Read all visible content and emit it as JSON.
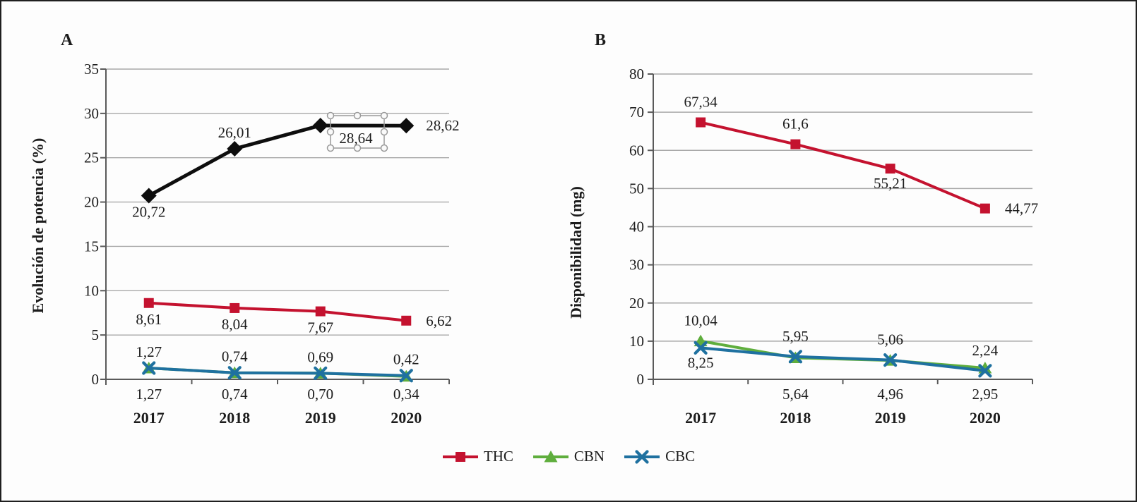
{
  "chart_data": [
    {
      "type": "line",
      "panel_label": "A",
      "ylabel": "Evolución de potencia (%)",
      "ylim": [
        0,
        35
      ],
      "ytick_step": 5,
      "ytick_labels": [
        "0",
        "5",
        "10",
        "15",
        "20",
        "25",
        "30",
        "35"
      ],
      "categories": [
        "2017",
        "2018",
        "2019",
        "2020"
      ],
      "grid": true,
      "legend_position": "bottom",
      "series": [
        {
          "name": "",
          "marker": "diamond",
          "color": "#0e0e0e",
          "in_legend": false,
          "values": [
            20.72,
            26.01,
            28.64,
            28.62
          ],
          "labels": [
            "20,72",
            "26,01",
            "28,64",
            "28,62"
          ],
          "label_pos": [
            "below",
            "above",
            "boxed",
            "right"
          ]
        },
        {
          "name": "THC",
          "marker": "square",
          "color": "#c4122f",
          "in_legend": true,
          "values": [
            8.61,
            8.04,
            7.67,
            6.62
          ],
          "labels": [
            "8,61",
            "8,04",
            "7,67",
            "6,62"
          ],
          "label_pos": [
            "below",
            "below",
            "below",
            "right"
          ]
        },
        {
          "name": "CBN",
          "marker": "triangle",
          "color": "#5fae3d",
          "in_legend": true,
          "values": [
            1.27,
            0.74,
            0.7,
            0.34
          ],
          "labels": [
            "1,27",
            "0,74",
            "0,70",
            "0,34"
          ],
          "label_pos": [
            "axis-below",
            "axis-below",
            "axis-below",
            "axis-below"
          ]
        },
        {
          "name": "CBC",
          "marker": "x",
          "color": "#1f71a0",
          "in_legend": true,
          "values": [
            1.27,
            0.74,
            0.69,
            0.42
          ],
          "labels": [
            "1,27",
            "0,74",
            "0,69",
            "0,42"
          ],
          "label_pos": [
            "above",
            "above",
            "above",
            "above"
          ]
        }
      ],
      "annotation": {
        "type": "selection-box",
        "on_series": 0,
        "on_point": 2,
        "label": "28,64"
      }
    },
    {
      "type": "line",
      "panel_label": "B",
      "ylabel": "Disponibilidad (mg)",
      "ylim": [
        0,
        80
      ],
      "ytick_step": 10,
      "ytick_labels": [
        "0",
        "10",
        "20",
        "30",
        "40",
        "50",
        "60",
        "70",
        "80"
      ],
      "categories": [
        "2017",
        "2018",
        "2019",
        "2020"
      ],
      "grid": true,
      "legend_position": "bottom",
      "series": [
        {
          "name": "THC",
          "marker": "square",
          "color": "#c4122f",
          "in_legend": true,
          "values": [
            67.34,
            61.6,
            55.21,
            44.77
          ],
          "labels": [
            "67,34",
            "61,6",
            "55,21",
            "44,77"
          ],
          "label_pos": [
            "above",
            "above",
            "below",
            "right"
          ]
        },
        {
          "name": "CBN",
          "marker": "triangle",
          "color": "#5fae3d",
          "in_legend": true,
          "values": [
            10.04,
            5.64,
            4.96,
            2.95
          ],
          "labels": [
            "10,04",
            "5,64",
            "4,96",
            "2,95"
          ],
          "label_pos": [
            "above",
            "axis-below",
            "axis-below",
            "axis-below"
          ]
        },
        {
          "name": "CBC",
          "marker": "x",
          "color": "#1f71a0",
          "in_legend": true,
          "values": [
            8.25,
            5.95,
            5.06,
            2.24
          ],
          "labels": [
            "8,25",
            "5,95",
            "5,06",
            "2,24"
          ],
          "label_pos": [
            "below",
            "above",
            "above",
            "above"
          ]
        }
      ]
    }
  ],
  "legend": {
    "items": [
      {
        "label": "THC",
        "marker": "square",
        "color": "#c4122f"
      },
      {
        "label": "CBN",
        "marker": "triangle",
        "color": "#5fae3d"
      },
      {
        "label": "CBC",
        "marker": "x",
        "color": "#1f71a0"
      }
    ]
  },
  "colors": {
    "thc_red": "#c4122f",
    "cbn_green": "#5fae3d",
    "cbc_blue": "#1f71a0",
    "series_black": "#0e0e0e",
    "gridline": "#a8a8a8",
    "axis": "#5a5a5a",
    "selection_outline": "#9a9a9a",
    "frame": "#1f1f1f"
  }
}
